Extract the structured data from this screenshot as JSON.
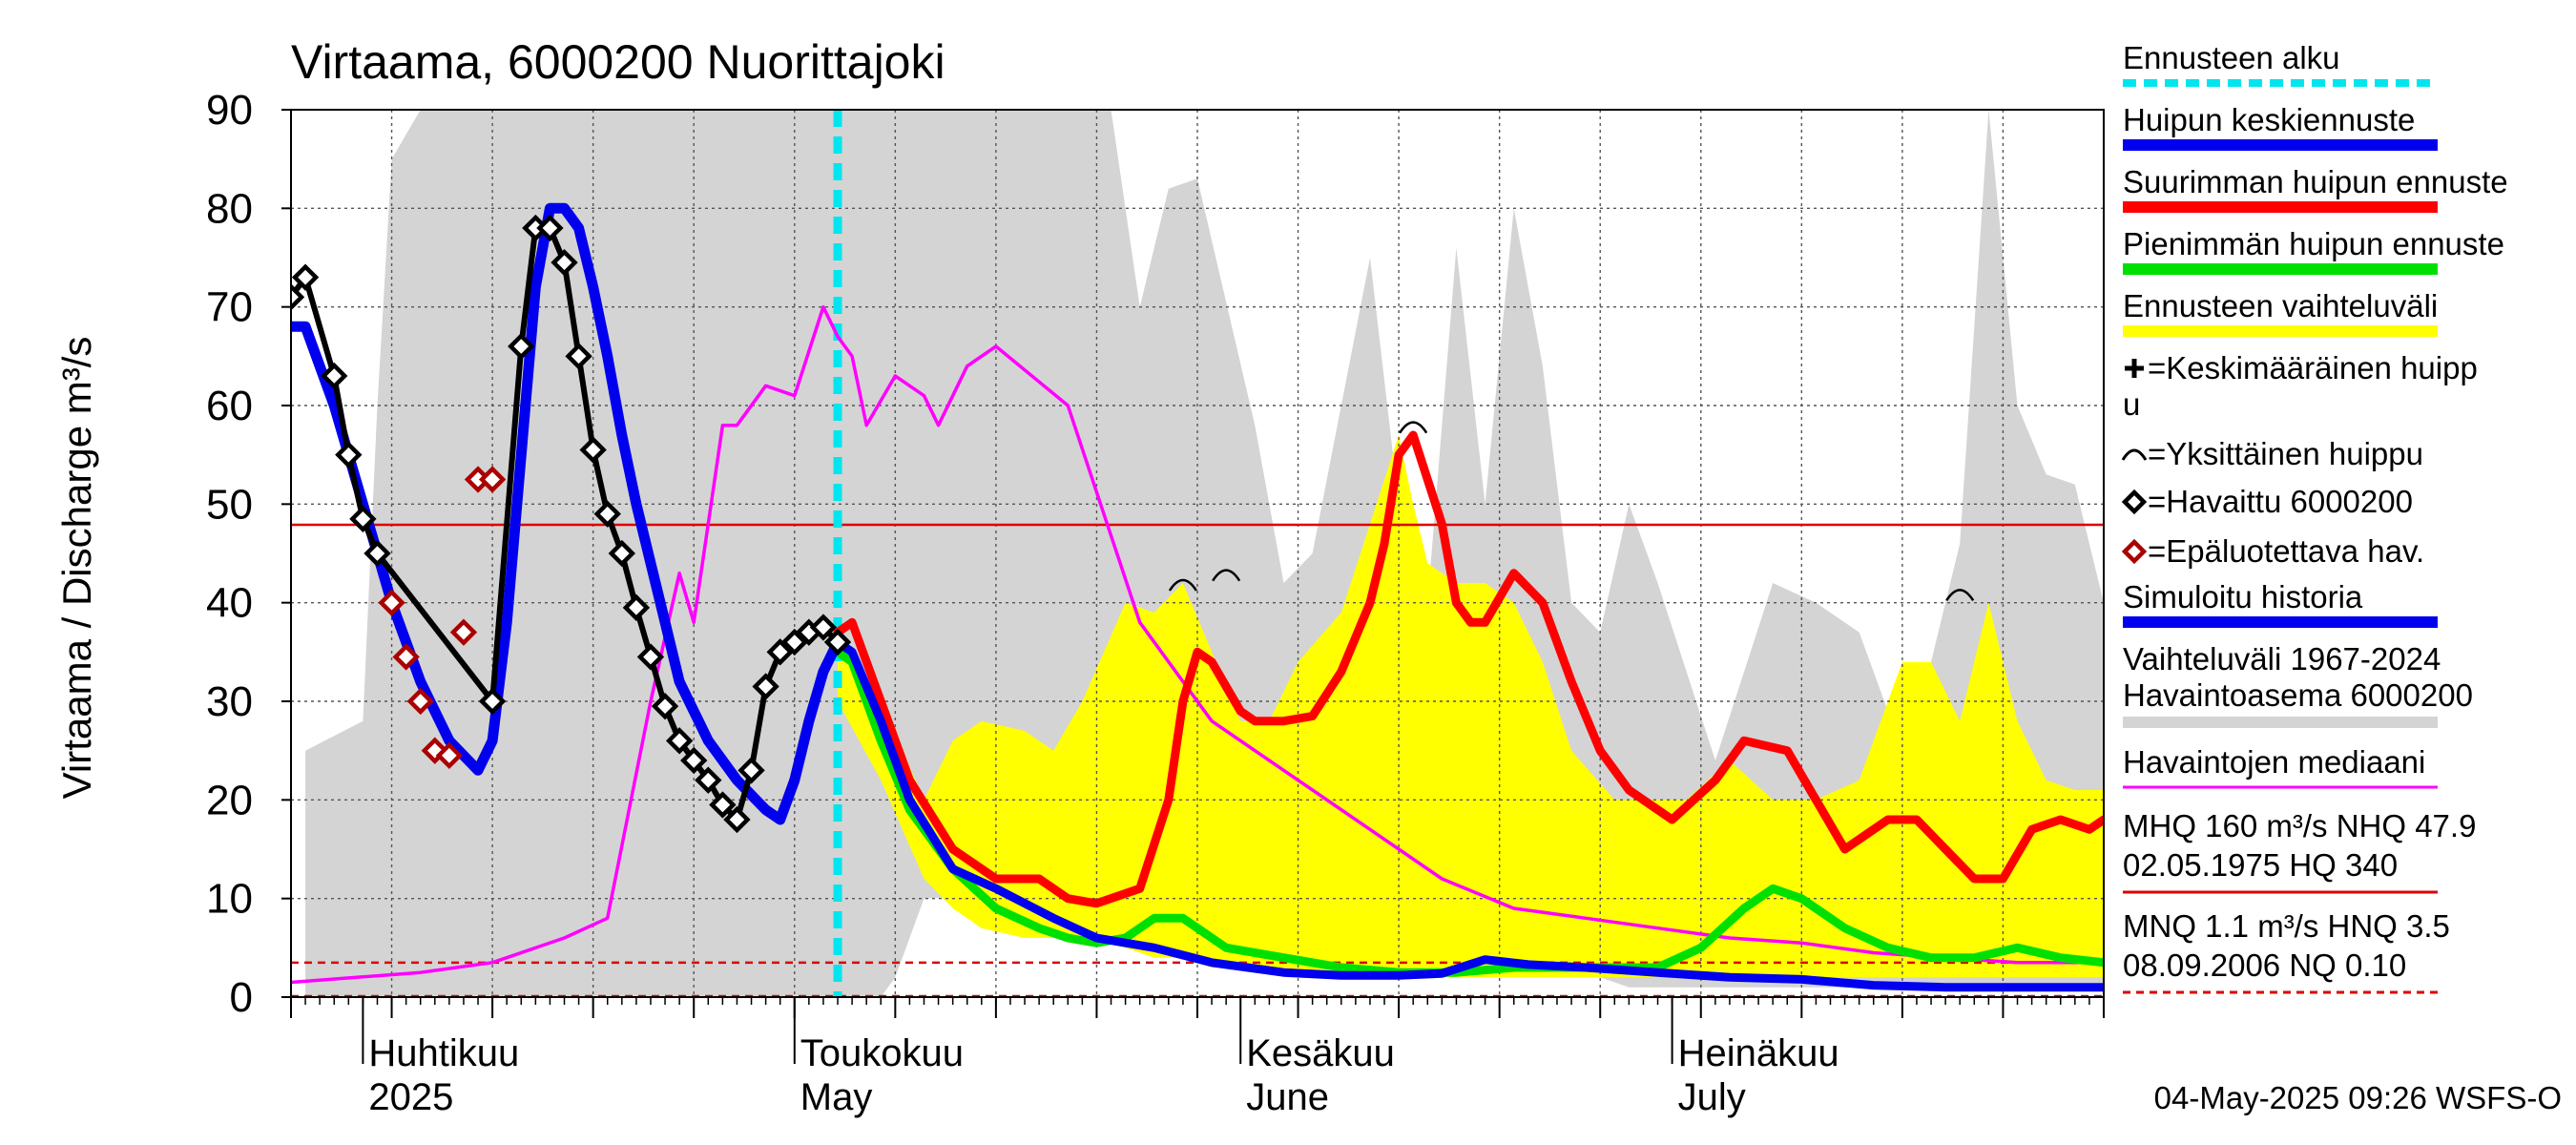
{
  "chart_data": {
    "type": "line",
    "title": "Virtaama, 6000200 Nuorittajoki",
    "ylabel": "Virtaama / Discharge    m³/s",
    "ylim": [
      0,
      90
    ],
    "yticks": [
      "0",
      "10",
      "20",
      "30",
      "40",
      "50",
      "60",
      "70",
      "80",
      "90"
    ],
    "xlim": [
      "2025-03-27",
      "2025-07-31"
    ],
    "x_month_labels": [
      {
        "fi": "Huhtikuu",
        "en": "2025",
        "date": "2025-04-01"
      },
      {
        "fi": "Toukokuu",
        "en": "May",
        "date": "2025-05-01"
      },
      {
        "fi": "Kesäkuu",
        "en": "June",
        "date": "2025-06-01"
      },
      {
        "fi": "Heinäkuu",
        "en": "July",
        "date": "2025-07-01"
      }
    ],
    "forecast_start": "2025-05-04",
    "reference_lines": [
      {
        "name": "NHQ",
        "value": 47.9,
        "style": "solid",
        "color": "#dd0000"
      },
      {
        "name": "HNQ",
        "value": 3.5,
        "style": "dashed",
        "color": "#dd0000"
      },
      {
        "name": "NQ",
        "value": 0.1,
        "style": "dashed",
        "color": "#dd0000"
      }
    ],
    "history_range": {
      "name": "Vaihteluväli 1967-2024 Havaintoasema 6000200",
      "color": "#d4d4d4",
      "x": [
        "2025-03-28",
        "2025-04-01",
        "2025-04-02",
        "2025-04-03",
        "2025-04-05",
        "2025-05-01",
        "2025-05-05",
        "2025-05-07",
        "2025-05-08",
        "2025-05-10",
        "2025-05-23",
        "2025-05-25",
        "2025-05-27",
        "2025-05-29",
        "2025-06-02",
        "2025-06-04",
        "2025-06-06",
        "2025-06-10",
        "2025-06-12",
        "2025-06-14",
        "2025-06-16",
        "2025-06-18",
        "2025-06-20",
        "2025-06-22",
        "2025-06-24",
        "2025-06-26",
        "2025-06-28",
        "2025-06-30",
        "2025-07-04",
        "2025-07-08",
        "2025-07-11",
        "2025-07-14",
        "2025-07-17",
        "2025-07-19",
        "2025-07-21",
        "2025-07-23",
        "2025-07-25",
        "2025-07-27",
        "2025-07-29",
        "2025-07-31"
      ],
      "upper": [
        25,
        28,
        60,
        85,
        90,
        90,
        90,
        90,
        90,
        90,
        90,
        70,
        82,
        83,
        58,
        42,
        45,
        75,
        50,
        40,
        76,
        50,
        80,
        64,
        40,
        37,
        50,
        42,
        24,
        42,
        40,
        37,
        25,
        34,
        46,
        90,
        60,
        53,
        52,
        40
      ],
      "lower": [
        0,
        0,
        0,
        0,
        0,
        0,
        0,
        0,
        2,
        10,
        11,
        13,
        14,
        14,
        12,
        7,
        6,
        5,
        4,
        4,
        3,
        3,
        3,
        3,
        2,
        2,
        1,
        1,
        1,
        1,
        1,
        1,
        1,
        1,
        1,
        1,
        1,
        1,
        1,
        1
      ]
    },
    "forecast_range": {
      "name": "Ennusteen vaihteluväli",
      "color": "#ffff00",
      "x": [
        "2025-05-04",
        "2025-05-07",
        "2025-05-10",
        "2025-05-12",
        "2025-05-14",
        "2025-05-17",
        "2025-05-19",
        "2025-05-21",
        "2025-05-24",
        "2025-05-26",
        "2025-05-28",
        "2025-05-30",
        "2025-06-01",
        "2025-06-03",
        "2025-06-05",
        "2025-06-08",
        "2025-06-10",
        "2025-06-12",
        "2025-06-13",
        "2025-06-14",
        "2025-06-16",
        "2025-06-18",
        "2025-06-20",
        "2025-06-22",
        "2025-06-24",
        "2025-06-27",
        "2025-06-29",
        "2025-07-02",
        "2025-07-05",
        "2025-07-08",
        "2025-07-11",
        "2025-07-14",
        "2025-07-17",
        "2025-07-19",
        "2025-07-21",
        "2025-07-23",
        "2025-07-25",
        "2025-07-27",
        "2025-07-29",
        "2025-07-31"
      ],
      "upper": [
        37,
        30,
        20,
        26,
        28,
        27,
        25,
        30,
        40,
        39,
        42,
        35,
        28,
        28,
        34,
        39,
        48,
        57,
        50,
        44,
        42,
        42,
        40,
        34,
        25,
        20,
        20,
        20,
        24,
        20,
        20,
        22,
        34,
        34,
        28,
        40,
        28,
        22,
        21,
        21
      ],
      "lower": [
        30,
        22,
        12,
        9,
        7,
        6,
        6,
        6,
        5,
        4,
        4,
        3,
        3,
        2.5,
        2.5,
        2.5,
        2,
        2,
        2,
        2,
        2,
        2,
        2,
        2,
        2,
        2,
        2,
        2,
        2,
        2,
        2,
        2,
        2,
        2,
        2,
        2,
        2,
        2,
        2,
        2
      ]
    },
    "series": [
      {
        "name": "Havaintojen mediaani",
        "color": "#ff00ff",
        "x": [
          "2025-03-27",
          "2025-04-05",
          "2025-04-10",
          "2025-04-15",
          "2025-04-18",
          "2025-04-21",
          "2025-04-23",
          "2025-04-24",
          "2025-04-26",
          "2025-04-27",
          "2025-04-29",
          "2025-05-01",
          "2025-05-03",
          "2025-05-04",
          "2025-05-05",
          "2025-05-06",
          "2025-05-08",
          "2025-05-09",
          "2025-05-10",
          "2025-05-11",
          "2025-05-13",
          "2025-05-15",
          "2025-05-20",
          "2025-05-25",
          "2025-05-30",
          "2025-06-05",
          "2025-06-10",
          "2025-06-15",
          "2025-06-20",
          "2025-06-25",
          "2025-06-30",
          "2025-07-05",
          "2025-07-10",
          "2025-07-15",
          "2025-07-20",
          "2025-07-25",
          "2025-07-31"
        ],
        "values": [
          1.5,
          2.5,
          3.5,
          6,
          8,
          30,
          43,
          38,
          58,
          58,
          62,
          61,
          70,
          67,
          65,
          58,
          63,
          62,
          61,
          58,
          64,
          66,
          60,
          38,
          28,
          22,
          17,
          12,
          9,
          8,
          7,
          6,
          5.5,
          4.5,
          4,
          3.5,
          3.5
        ]
      },
      {
        "name": "Suurimman huipun ennuste",
        "color": "#ff0000",
        "x": [
          "2025-05-04",
          "2025-05-05",
          "2025-05-07",
          "2025-05-09",
          "2025-05-12",
          "2025-05-15",
          "2025-05-18",
          "2025-05-20",
          "2025-05-22",
          "2025-05-25",
          "2025-05-27",
          "2025-05-28",
          "2025-05-29",
          "2025-05-30",
          "2025-06-01",
          "2025-06-02",
          "2025-06-04",
          "2025-06-06",
          "2025-06-08",
          "2025-06-10",
          "2025-06-11",
          "2025-06-12",
          "2025-06-13",
          "2025-06-15",
          "2025-06-16",
          "2025-06-17",
          "2025-06-18",
          "2025-06-20",
          "2025-06-22",
          "2025-06-24",
          "2025-06-26",
          "2025-06-28",
          "2025-07-01",
          "2025-07-04",
          "2025-07-06",
          "2025-07-09",
          "2025-07-11",
          "2025-07-13",
          "2025-07-16",
          "2025-07-18",
          "2025-07-20",
          "2025-07-22",
          "2025-07-24",
          "2025-07-26",
          "2025-07-28",
          "2025-07-30",
          "2025-07-31"
        ],
        "values": [
          37,
          38,
          30,
          22,
          15,
          12,
          12,
          10,
          9.5,
          11,
          20,
          30,
          35,
          34,
          29,
          28,
          28,
          28.5,
          33,
          40,
          46,
          55,
          57,
          48,
          40,
          38,
          38,
          43,
          40,
          32,
          25,
          21,
          18,
          22,
          26,
          25,
          20,
          15,
          18,
          18,
          15,
          12,
          12,
          17,
          18,
          17,
          18
        ]
      },
      {
        "name": "Pienimmän huipun ennuste",
        "color": "#00e000",
        "x": [
          "2025-05-04",
          "2025-05-05",
          "2025-05-07",
          "2025-05-09",
          "2025-05-12",
          "2025-05-15",
          "2025-05-18",
          "2025-05-20",
          "2025-05-22",
          "2025-05-24",
          "2025-05-26",
          "2025-05-28",
          "2025-05-31",
          "2025-06-04",
          "2025-06-08",
          "2025-06-12",
          "2025-06-16",
          "2025-06-20",
          "2025-06-24",
          "2025-06-27",
          "2025-06-30",
          "2025-07-03",
          "2025-07-06",
          "2025-07-08",
          "2025-07-10",
          "2025-07-13",
          "2025-07-16",
          "2025-07-19",
          "2025-07-22",
          "2025-07-25",
          "2025-07-28",
          "2025-07-31"
        ],
        "values": [
          35,
          34,
          26,
          19,
          13,
          9,
          7,
          6,
          5.5,
          6,
          8,
          8,
          5,
          4,
          3,
          2.5,
          2.5,
          3,
          3,
          3,
          3,
          5,
          9,
          11,
          10,
          7,
          5,
          4,
          4,
          5,
          4,
          3.5
        ]
      },
      {
        "name": "Huipun keskiennuste",
        "color": "#0000ee",
        "x": [
          "2025-05-04",
          "2025-05-05",
          "2025-05-07",
          "2025-05-09",
          "2025-05-12",
          "2025-05-15",
          "2025-05-19",
          "2025-05-22",
          "2025-05-26",
          "2025-05-30",
          "2025-06-04",
          "2025-06-08",
          "2025-06-12",
          "2025-06-15",
          "2025-06-18",
          "2025-06-21",
          "2025-06-25",
          "2025-06-30",
          "2025-07-05",
          "2025-07-10",
          "2025-07-15",
          "2025-07-20",
          "2025-07-25",
          "2025-07-31"
        ],
        "values": [
          36,
          35,
          28,
          20,
          13,
          11,
          8,
          6,
          5,
          3.5,
          2.5,
          2.2,
          2.2,
          2.4,
          3.8,
          3.3,
          3,
          2.5,
          2,
          1.8,
          1.2,
          1,
          1,
          1
        ]
      },
      {
        "name": "Simuloitu historia",
        "color": "#0000ee",
        "x": [
          "2025-03-27",
          "2025-03-28",
          "2025-03-30",
          "2025-04-01",
          "2025-04-03",
          "2025-04-05",
          "2025-04-07",
          "2025-04-09",
          "2025-04-10",
          "2025-04-11",
          "2025-04-12",
          "2025-04-13",
          "2025-04-14",
          "2025-04-15",
          "2025-04-16",
          "2025-04-17",
          "2025-04-18",
          "2025-04-19",
          "2025-04-20",
          "2025-04-21",
          "2025-04-22",
          "2025-04-23",
          "2025-04-25",
          "2025-04-27",
          "2025-04-29",
          "2025-04-30",
          "2025-05-01",
          "2025-05-02",
          "2025-05-03",
          "2025-05-04"
        ],
        "values": [
          68,
          68,
          60,
          50,
          40,
          32,
          26,
          23,
          26,
          38,
          55,
          72,
          80,
          80,
          78,
          72,
          65,
          57,
          50,
          44,
          38,
          32,
          26,
          22,
          19,
          18,
          22,
          28,
          33,
          36
        ]
      }
    ],
    "observed": {
      "name": "Havaittu 6000200",
      "color": "#000000",
      "x": [
        "2025-03-27",
        "2025-03-28",
        "2025-03-30",
        "2025-03-31",
        "2025-04-01",
        "2025-04-02",
        "2025-04-10",
        "2025-04-12",
        "2025-04-13",
        "2025-04-14",
        "2025-04-15",
        "2025-04-16",
        "2025-04-17",
        "2025-04-18",
        "2025-04-19",
        "2025-04-20",
        "2025-04-21",
        "2025-04-22",
        "2025-04-23",
        "2025-04-24",
        "2025-04-25",
        "2025-04-26",
        "2025-04-27",
        "2025-04-28",
        "2025-04-29",
        "2025-04-30",
        "2025-05-01",
        "2025-05-02",
        "2025-05-03",
        "2025-05-04"
      ],
      "values": [
        71,
        73,
        63,
        55,
        48.5,
        45,
        30,
        66,
        78,
        78,
        74.5,
        65,
        55.5,
        49,
        45,
        39.5,
        34.5,
        29.5,
        26,
        24,
        22,
        19.5,
        18,
        23,
        31.5,
        35,
        36,
        37,
        37.5,
        36
      ]
    },
    "unreliable": {
      "name": "Epäluotettava hav.",
      "color": "#aa0000",
      "x": [
        "2025-04-03",
        "2025-04-04",
        "2025-04-05",
        "2025-04-06",
        "2025-04-07",
        "2025-04-08",
        "2025-04-09",
        "2025-04-10"
      ],
      "values": [
        40,
        34.5,
        30,
        25,
        24.5,
        37,
        52.5,
        52.5
      ]
    },
    "peaks": [
      {
        "x": "2025-05-28",
        "value": 42
      },
      {
        "x": "2025-05-31",
        "value": 43
      },
      {
        "x": "2025-06-13",
        "value": 58
      },
      {
        "x": "2025-07-21",
        "value": 41
      }
    ],
    "legend_placement": "right",
    "grid": true,
    "legend": [
      {
        "label": "Ennusteen alku",
        "style": "dashed",
        "color": "#00e5ee"
      },
      {
        "label": "Huipun keskiennuste",
        "style": "bar",
        "color": "#0000ee"
      },
      {
        "label": "Suurimman huipun ennuste",
        "style": "bar",
        "color": "#ff0000"
      },
      {
        "label": "Pienimmän huipun ennuste",
        "style": "bar",
        "color": "#00e000"
      },
      {
        "label": "Ennusteen vaihteluväli",
        "style": "bar",
        "color": "#ffff00"
      },
      {
        "label": "=Keskimääräinen huipp",
        "label2": "u",
        "style": "cross",
        "color": "#000000"
      },
      {
        "label": "=Yksittäinen huippu",
        "style": "arc",
        "color": "#000000"
      },
      {
        "label": "=Havaittu 6000200",
        "style": "diamond",
        "color": "#000000"
      },
      {
        "label": "=Epäluotettava hav.",
        "style": "diamond",
        "color": "#aa0000"
      },
      {
        "label": "Simuloitu historia",
        "style": "bar",
        "color": "#0000ee"
      },
      {
        "label": "Vaihteluväli 1967-2024",
        "label2": " Havaintoasema 6000200",
        "style": "bar",
        "color": "#d4d4d4"
      },
      {
        "label": "Havaintojen mediaani",
        "style": "thin",
        "color": "#ff00ff"
      },
      {
        "label": "MHQ  160 m³/s NHQ 47.9",
        "label2": "02.05.1975 HQ  340",
        "style": "thin",
        "color": "#dd0000"
      },
      {
        "label": "MNQ  1.1 m³/s HNQ  3.5",
        "label2": "08.09.2006 NQ 0.10",
        "style": "dashed-thin",
        "color": "#dd0000"
      }
    ],
    "footer": "04-May-2025 09:26 WSFS-O"
  }
}
